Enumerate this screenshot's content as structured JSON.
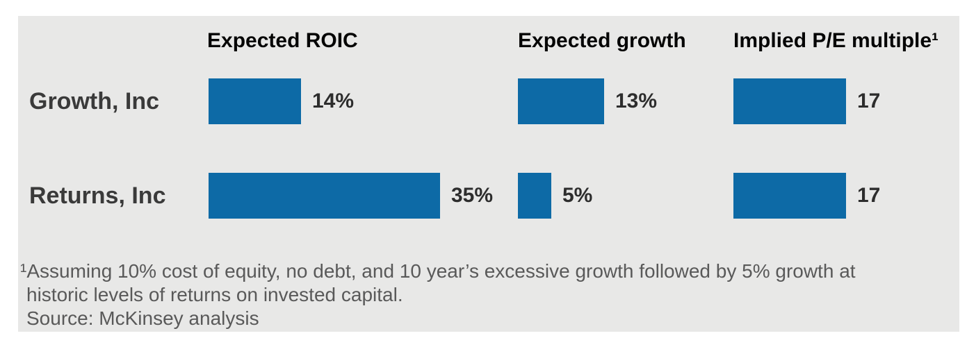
{
  "chart_data": {
    "type": "bar",
    "title": "",
    "rows": [
      "Growth, Inc",
      "Returns, Inc"
    ],
    "columns": [
      {
        "header": "Expected ROIC",
        "values": [
          14,
          35
        ],
        "labels": [
          "14%",
          "35%"
        ]
      },
      {
        "header": "Expected growth",
        "values": [
          13,
          5
        ],
        "labels": [
          "13%",
          "5%"
        ]
      },
      {
        "header": "Implied P/E multiple¹",
        "values": [
          17,
          17
        ],
        "labels": [
          "17",
          "17"
        ]
      }
    ],
    "bar_color": "#0d6aa6",
    "layout": "horizontal-bars, per-row value labels right of bars, no axes, no gridlines, no legend"
  },
  "panel": {
    "background_color": "#e8e8e7"
  },
  "footnote": {
    "lines": [
      "¹Assuming 10% cost of equity, no debt, and 10 year’s excessive growth followed by 5% growth at",
      "historic levels of returns on invested capital.",
      "Source: McKinsey analysis"
    ]
  }
}
